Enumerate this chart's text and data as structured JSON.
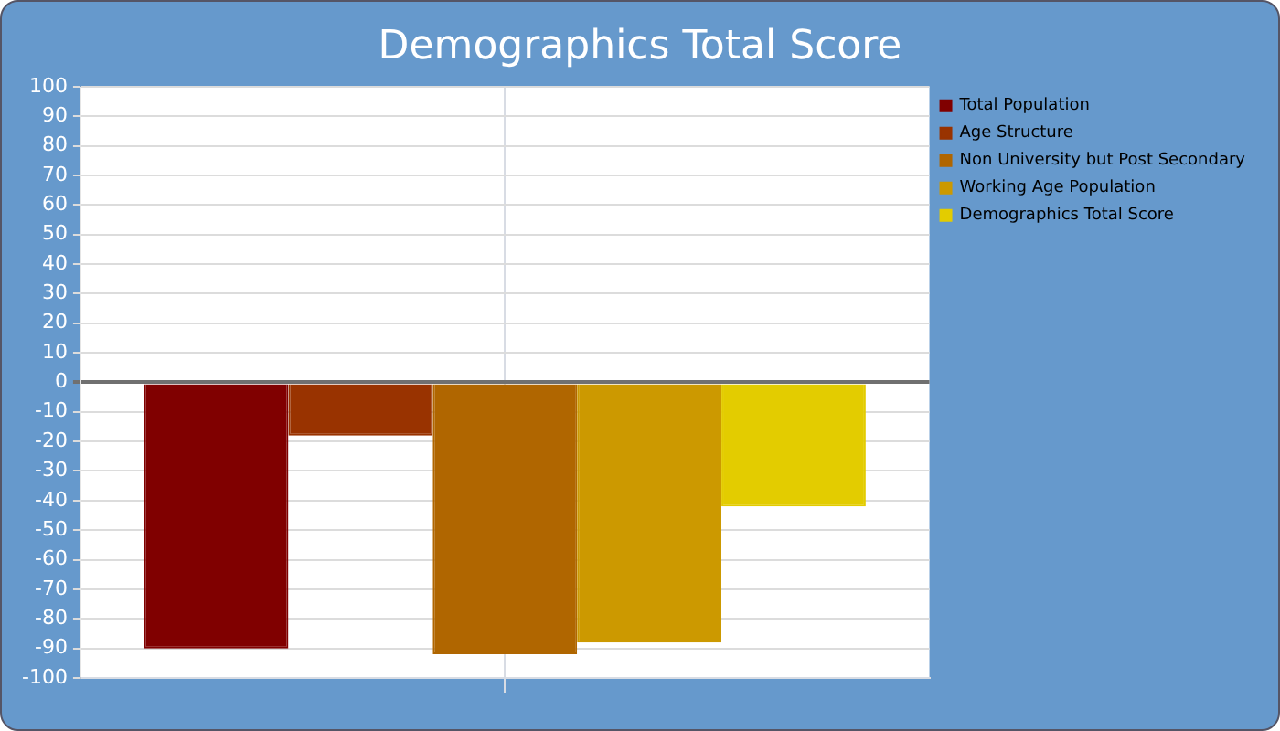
{
  "chart_data": {
    "type": "bar",
    "title": "Demographics Total Score",
    "categories": [
      null
    ],
    "series": [
      {
        "name": "Total Population",
        "color": "#800000",
        "values": [
          -90
        ]
      },
      {
        "name": "Age Structure",
        "color": "#993300",
        "values": [
          -18
        ]
      },
      {
        "name": "Non University but Post Secondary",
        "color": "#b06600",
        "values": [
          -92
        ]
      },
      {
        "name": "Working Age Population",
        "color": "#cc9900",
        "values": [
          -88
        ]
      },
      {
        "name": "Demographics Total Score",
        "color": "#e3cc00",
        "values": [
          -42
        ]
      }
    ],
    "ylim": [
      -100,
      100
    ],
    "yticks": [
      -100,
      -90,
      -80,
      -70,
      -60,
      -50,
      -40,
      -30,
      -20,
      -10,
      0,
      10,
      20,
      30,
      40,
      50,
      60,
      70,
      80,
      90,
      100
    ],
    "grid": true,
    "legend": "top right"
  }
}
